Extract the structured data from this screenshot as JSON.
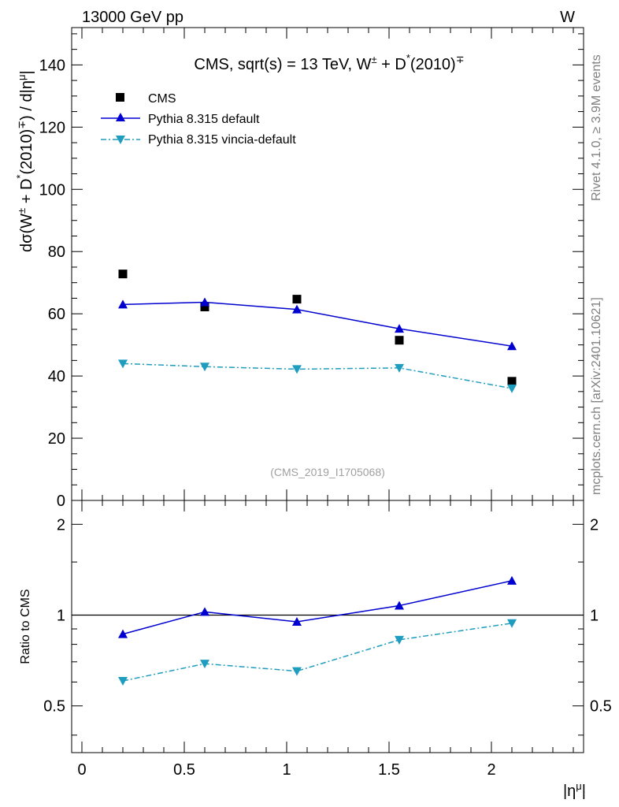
{
  "header": {
    "energy_label": "13000 GeV pp",
    "process_label": "W"
  },
  "side_labels": {
    "rivet": "Rivet 4.1.0, ≥ 3.9M events",
    "mcplots": "mcplots.cern.ch [arXiv:2401.10621]"
  },
  "watermark": "(CMS_2019_I1705068)",
  "chart_data": [
    {
      "type": "scatter",
      "panel": "main",
      "title": {
        "prefix": "CMS, sqrt(s) = 13 TeV, W",
        "w_charge": "±",
        "plus_d": " + D",
        "star": "*",
        "mass": "(2010)",
        "d_charge": "∓"
      },
      "ylabel": {
        "dsigma": "dσ(W",
        "w_charge": "±",
        "plus_d": " + D",
        "star": "*",
        "mass": "(2010)",
        "d_charge": "∓",
        "close": ") / d|η",
        "mu": "μ",
        "bar": "|"
      },
      "ylim": [
        0,
        152
      ],
      "xlim": [
        -0.05,
        2.45
      ],
      "yticks": [
        0,
        20,
        40,
        60,
        80,
        100,
        120,
        140
      ],
      "ytick_labels": [
        "0",
        "20",
        "40",
        "60",
        "80",
        "100",
        "120",
        "140"
      ],
      "legend_position": "top-left",
      "x": [
        0.2,
        0.6,
        1.05,
        1.55,
        2.1
      ],
      "series": [
        {
          "name": "CMS",
          "kind": "data",
          "marker": "square",
          "color": "#000000",
          "values": [
            72.8,
            62.2,
            64.7,
            51.5,
            38.3
          ],
          "errors": [
            0.6,
            0.6,
            0.6,
            0.6,
            0.6
          ]
        },
        {
          "name": "Pythia 8.315 default",
          "kind": "line",
          "marker": "triangle-up",
          "color": "#0000d0",
          "values": [
            63.0,
            63.7,
            61.4,
            55.2,
            49.6
          ],
          "errors": [
            1.2,
            1.2,
            1.0,
            1.0,
            0.8
          ]
        },
        {
          "name": "Pythia 8.315 vincia-default",
          "kind": "dashdot",
          "marker": "triangle-down",
          "color": "#1f9dbf",
          "values": [
            44.0,
            43.0,
            42.2,
            42.6,
            36.0
          ],
          "errors": [
            0.8,
            0.8,
            0.8,
            0.8,
            0.8
          ]
        }
      ]
    },
    {
      "type": "line",
      "panel": "ratio",
      "ylabel": "Ratio to CMS",
      "xlabel": {
        "base": "|η",
        "mu": "μ",
        "bar": "|"
      },
      "ylim": [
        0.35,
        2.4
      ],
      "yscale": "log",
      "xlim": [
        -0.05,
        2.45
      ],
      "reference_line": 1,
      "yticks": [
        0.5,
        1,
        2
      ],
      "ytick_labels": [
        "0.5",
        "1",
        "2"
      ],
      "xticks": [
        0,
        0.5,
        1,
        1.5,
        2
      ],
      "xtick_labels": [
        "0",
        "0.5",
        "1",
        "1.5",
        "2"
      ],
      "x": [
        0.2,
        0.6,
        1.05,
        1.55,
        2.1
      ],
      "series": [
        {
          "name": "Pythia 8.315 default",
          "kind": "line",
          "marker": "triangle-up",
          "color": "#0000d0",
          "values": [
            0.865,
            1.025,
            0.95,
            1.075,
            1.3
          ]
        },
        {
          "name": "Pythia 8.315 vincia-default",
          "kind": "dashdot",
          "marker": "triangle-down",
          "color": "#1f9dbf",
          "values": [
            0.605,
            0.69,
            0.652,
            0.828,
            0.94
          ]
        }
      ]
    }
  ]
}
